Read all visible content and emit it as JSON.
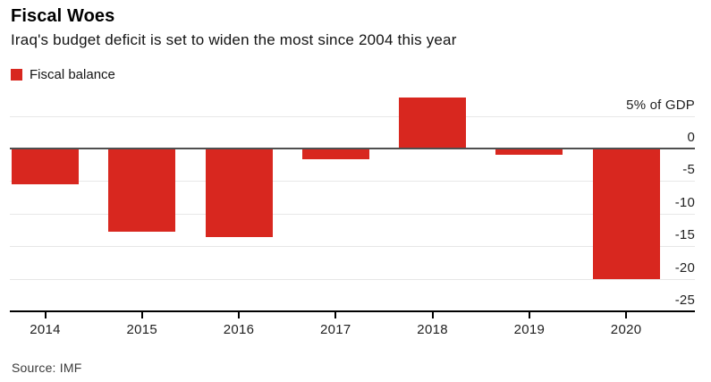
{
  "header": {
    "title": "Fiscal Woes",
    "subtitle": "Iraq's budget deficit is set to widen the most since 2004 this year"
  },
  "legend": {
    "label": "Fiscal balance"
  },
  "source_note": "Source: IMF",
  "colors": {
    "bar": "#d8271f",
    "zero_line": "#4f4f4f",
    "gridline": "#e7e7e7",
    "axis_line": "#000000"
  },
  "chart_data": {
    "type": "bar",
    "title": "Fiscal Woes",
    "subtitle": "Iraq's budget deficit is set to widen the most since 2004 this year",
    "categories": [
      "2014",
      "2015",
      "2016",
      "2017",
      "2018",
      "2019",
      "2020"
    ],
    "series": [
      {
        "name": "Fiscal balance",
        "values": [
          -5.5,
          -12.7,
          -13.6,
          -1.6,
          7.9,
          -0.9,
          -20
        ]
      }
    ],
    "unit": "% of GDP",
    "ylabel": "5% of GDP",
    "y_ticks": [
      5,
      0,
      -5,
      -10,
      -15,
      -20,
      -25
    ],
    "y_tick_labels": [
      "5% of GDP",
      "0",
      "-5",
      "-10",
      "-15",
      "-20",
      "-25"
    ],
    "ylim": [
      -25,
      5
    ],
    "grid": "horizontal",
    "legend_position": "top-left",
    "value_axis_side": "right",
    "source": "Source: IMF"
  }
}
